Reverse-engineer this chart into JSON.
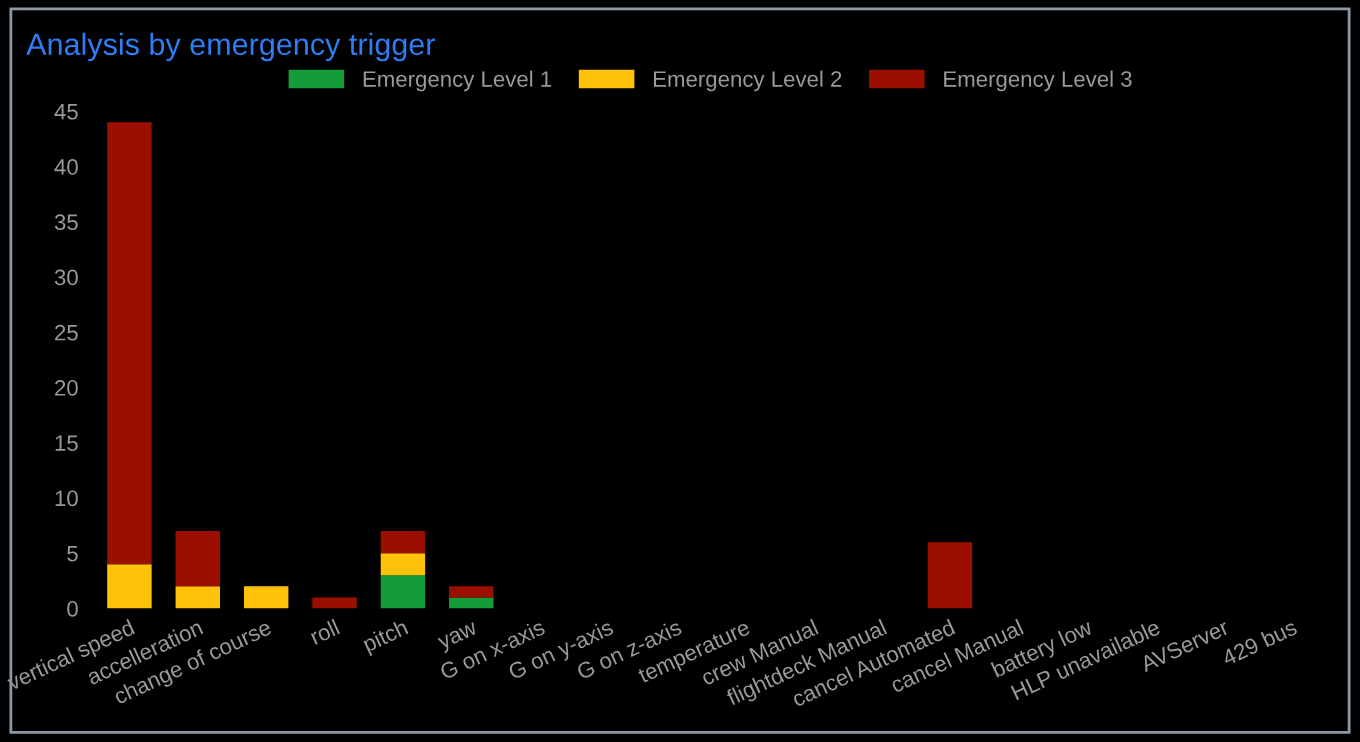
{
  "chart_data": {
    "type": "bar",
    "stacked": true,
    "title": "Analysis by emergency trigger",
    "categories": [
      "vertical speed",
      "accelleration",
      "change of course",
      "roll",
      "pitch",
      "yaw",
      "G on x-axis",
      "G on y-axis",
      "G on z-axis",
      "temperature",
      "crew Manual",
      "flightdeck Manual",
      "cancel Automated",
      "cancel Manual",
      "battery low",
      "HLP unavailable",
      "AVServer",
      "429 bus"
    ],
    "series": [
      {
        "name": "Emergency Level 1",
        "color": "#169b3a",
        "values": [
          0,
          0,
          0,
          0,
          3,
          1,
          0,
          0,
          0,
          0,
          0,
          0,
          0,
          0,
          0,
          0,
          0,
          0
        ]
      },
      {
        "name": "Emergency Level 2",
        "color": "#ffc20a",
        "values": [
          4,
          2,
          2,
          0,
          2,
          0,
          0,
          0,
          0,
          0,
          0,
          0,
          0,
          0,
          0,
          0,
          0,
          0
        ]
      },
      {
        "name": "Emergency Level 3",
        "color": "#9b0f00",
        "values": [
          40,
          5,
          0,
          1,
          2,
          1,
          0,
          0,
          0,
          0,
          0,
          0,
          6,
          0,
          0,
          0,
          0,
          0
        ]
      }
    ],
    "ylim": [
      0,
      45
    ],
    "yticks": [
      0,
      5,
      10,
      15,
      20,
      25,
      30,
      35,
      40,
      45
    ],
    "grid": false,
    "legend": "top"
  }
}
